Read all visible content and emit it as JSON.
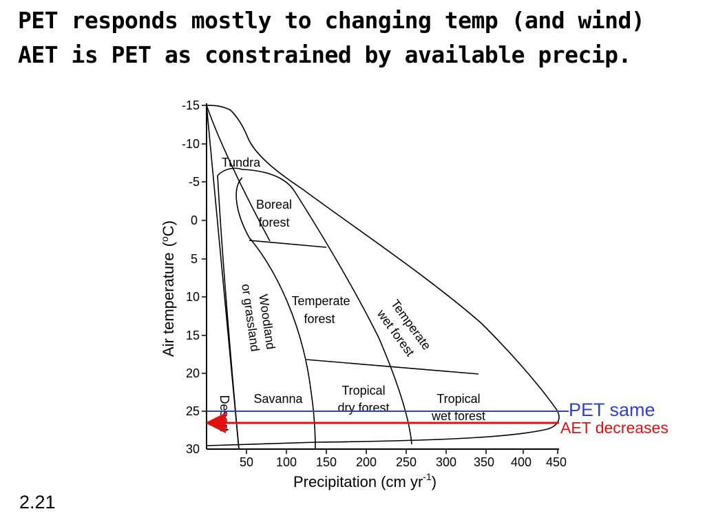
{
  "heading": {
    "line1": "PET responds mostly to changing temp (and wind)",
    "line2": "AET is PET as constrained by available precip."
  },
  "diagram": {
    "y_axis_label": "Air temperature",
    "y_axis_unit_prefix": "(",
    "y_axis_unit_sup": "o",
    "y_axis_unit_suffix": "C)",
    "x_axis_label_main": "Precipitation (cm yr",
    "x_axis_label_sup": "-1",
    "x_axis_label_close": ")",
    "y_ticks": [
      "-15",
      "-10",
      "-5",
      "0",
      "5",
      "10",
      "15",
      "20",
      "25",
      "30"
    ],
    "x_ticks": [
      "50",
      "100",
      "150",
      "200",
      "250",
      "300",
      "350",
      "400",
      "450"
    ],
    "biomes": {
      "tundra": "Tundra",
      "boreal_1": "Boreal",
      "boreal_2": "forest",
      "woodland_1": "Woodland",
      "woodland_2": "or grassland",
      "temperate_forest_1": "Temperate",
      "temperate_forest_2": "forest",
      "temperate_wet_1": "Temperate",
      "temperate_wet_2": "wet forest",
      "desert": "Desert",
      "savanna": "Savanna",
      "tropical_dry_1": "Tropical",
      "tropical_dry_2": "dry forest",
      "tropical_wet_1": "Tropical",
      "tropical_wet_2": "wet forest"
    },
    "annotations": {
      "pet": "PET same",
      "aet": "AET decreases",
      "pet_color": "#2f3fcf",
      "aet_color": "#e01010"
    }
  },
  "slide_number": "2.21"
}
